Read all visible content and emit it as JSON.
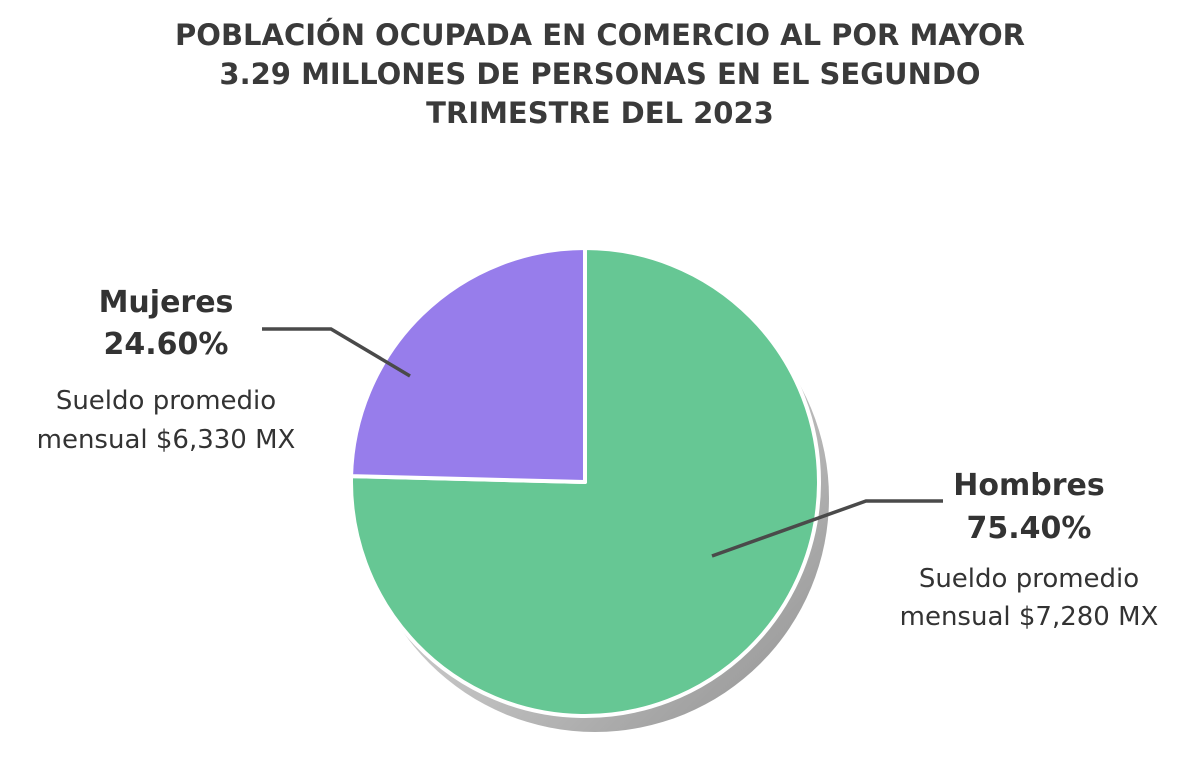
{
  "chart_data": {
    "type": "pie",
    "title": [
      "POBLACIÓN OCUPADA EN COMERCIO AL POR MAYOR",
      "3.29 MILLONES DE PERSONAS EN EL SEGUNDO",
      "TRIMESTRE DEL 2023"
    ],
    "slices": [
      {
        "label": "Hombres",
        "value": 75.4,
        "value_label": "75.40%",
        "note": [
          "Sueldo promedio",
          "mensual $7,280 MX"
        ],
        "color": "#66c794"
      },
      {
        "label": "Mujeres",
        "value": 24.6,
        "value_label": "24.60%",
        "note": [
          "Sueldo promedio",
          "mensual $6,330 MX"
        ],
        "color": "#977deb"
      }
    ],
    "shadow_color": "#a9a9a9",
    "legend": "none"
  }
}
